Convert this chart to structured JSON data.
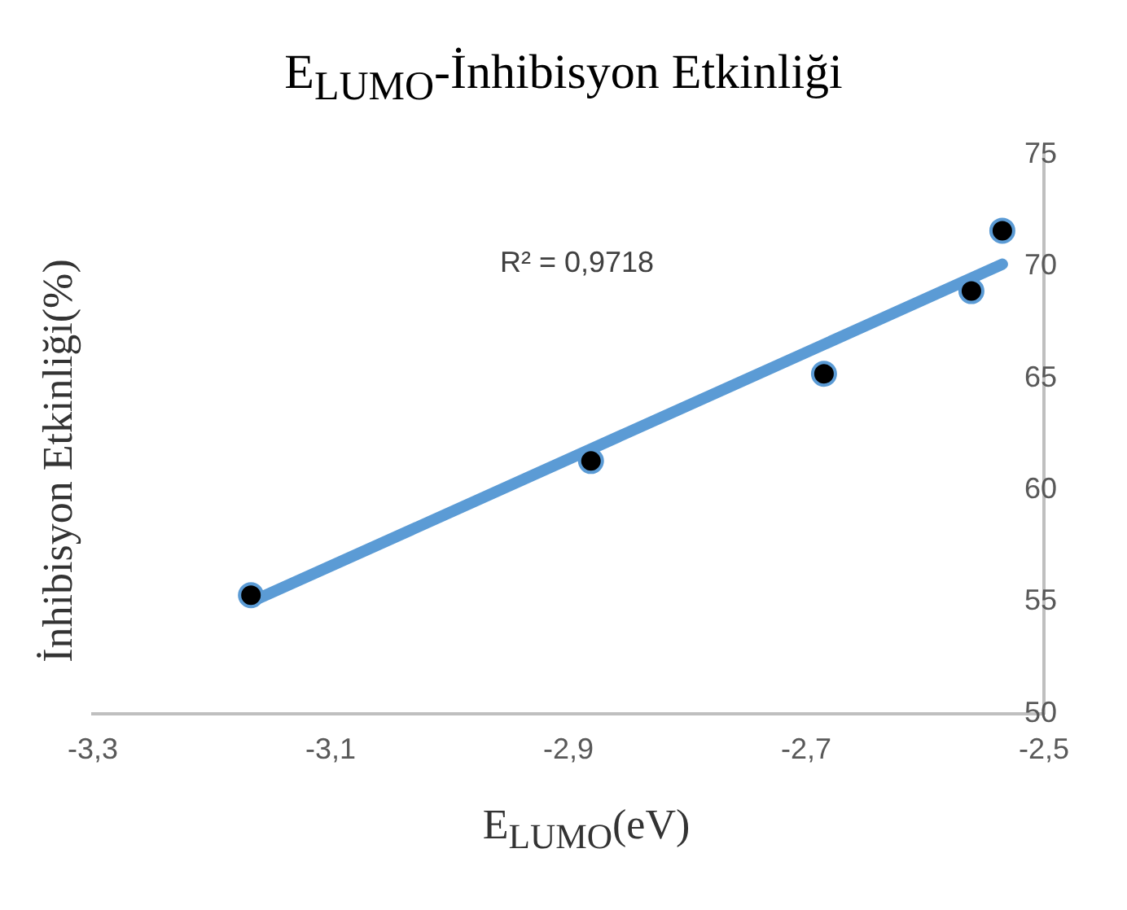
{
  "chart_data": {
    "type": "scatter",
    "title": "E$_{LUMO}$-İnhibisyon Etkinliği",
    "xlabel": "E$_{LUMO}$(eV)",
    "ylabel": "İnhibisyon Etkinliği(%)",
    "series": [
      {
        "marker": "circle",
        "color": "#000000",
        "x": [
          -3.167,
          -2.881,
          -2.685,
          -2.561,
          -2.535
        ],
        "values": [
          55.3,
          61.3,
          65.2,
          68.9,
          71.6
        ]
      },
      {
        "type": "line",
        "marker": "none",
        "color": "#5b9bd5",
        "x": [
          -3.167,
          -2.535
        ],
        "values": [
          55.0,
          70.1
        ]
      }
    ],
    "xlim": [
      -3.3,
      -2.5
    ],
    "xticks": [
      {
        "value": -3.3,
        "label": "-3,3"
      },
      {
        "value": -3.1,
        "label": "-3,1"
      },
      {
        "value": -2.9,
        "label": "-2,9"
      },
      {
        "value": -2.7,
        "label": "-2,7"
      },
      {
        "value": -2.5,
        "label": "-2,5"
      }
    ],
    "ylim": [
      50,
      75
    ],
    "yticks": [
      50,
      55,
      60,
      65,
      70,
      75
    ],
    "annotations": [
      "R² = 0,9718"
    ],
    "grid": false,
    "legend": false
  }
}
